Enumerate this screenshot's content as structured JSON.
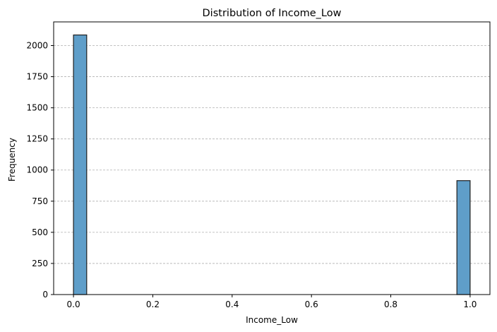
{
  "chart_data": {
    "type": "bar",
    "title": "Distribution of Income_Low",
    "xlabel": "Income_Low",
    "ylabel": "Frequency",
    "xlim": [
      -0.05,
      1.05
    ],
    "ylim": [
      0,
      2190
    ],
    "xticks": [
      0.0,
      0.2,
      0.4,
      0.6,
      0.8,
      1.0
    ],
    "xtick_labels": [
      "0.0",
      "0.2",
      "0.4",
      "0.6",
      "0.8",
      "1.0"
    ],
    "yticks": [
      0,
      250,
      500,
      750,
      1000,
      1250,
      1500,
      1750,
      2000
    ],
    "ytick_labels": [
      "0",
      "250",
      "500",
      "750",
      "1000",
      "1250",
      "1500",
      "1750",
      "2000"
    ],
    "grid": "y-dashed",
    "bins": [
      {
        "x0": 0.0,
        "x1": 0.0333,
        "count": 2085
      },
      {
        "x0": 0.9667,
        "x1": 1.0,
        "count": 915
      }
    ],
    "colors": {
      "bar_fill": "#5f9ec9",
      "bar_edge": "#1f1f1f",
      "grid": "#b0b0b0"
    }
  }
}
